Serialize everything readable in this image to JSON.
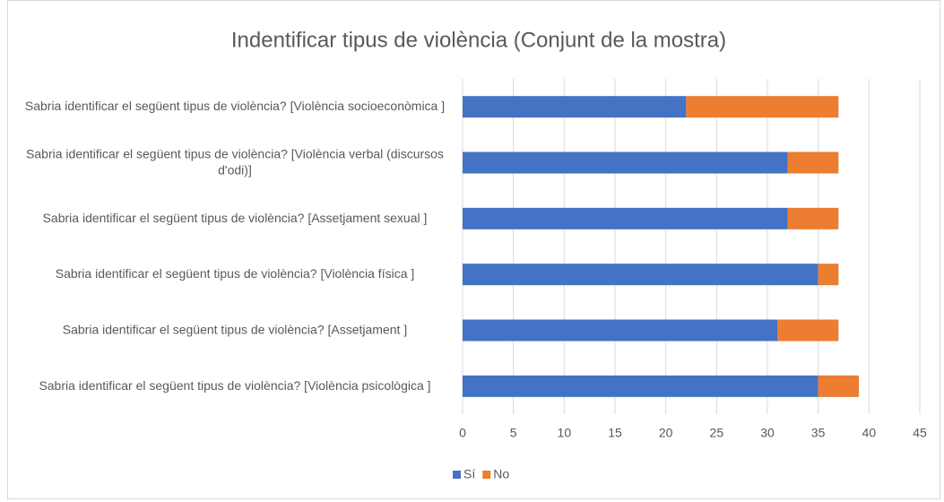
{
  "chart_data": {
    "type": "bar",
    "orientation": "horizontal",
    "stacked": true,
    "title": "Indentificar tipus de violència (Conjunt de la mostra)",
    "categories": [
      "Sabria identificar el següent tipus de violència?  [Violència socioeconòmica   ]",
      "Sabria identificar el següent tipus de violència?  [Violència verbal (discursos d'odi)]",
      "Sabria identificar el següent tipus de violència?  [Assetjament sexual ]",
      "Sabria identificar el següent tipus de violència?  [Violència física ]",
      "Sabria identificar el següent tipus de violència?  [Assetjament ]",
      "Sabria identificar el següent tipus de violència?  [Violència psicològica ]"
    ],
    "series": [
      {
        "name": "Sí",
        "color": "#4472c4",
        "values": [
          22,
          32,
          32,
          35,
          31,
          35
        ]
      },
      {
        "name": "No",
        "color": "#ed7d31",
        "values": [
          15,
          5,
          5,
          2,
          6,
          4
        ]
      }
    ],
    "xlim": [
      0,
      45
    ],
    "xticks": [
      0,
      5,
      10,
      15,
      20,
      25,
      30,
      35,
      40,
      45
    ],
    "grid": true,
    "legend": "bottom"
  }
}
